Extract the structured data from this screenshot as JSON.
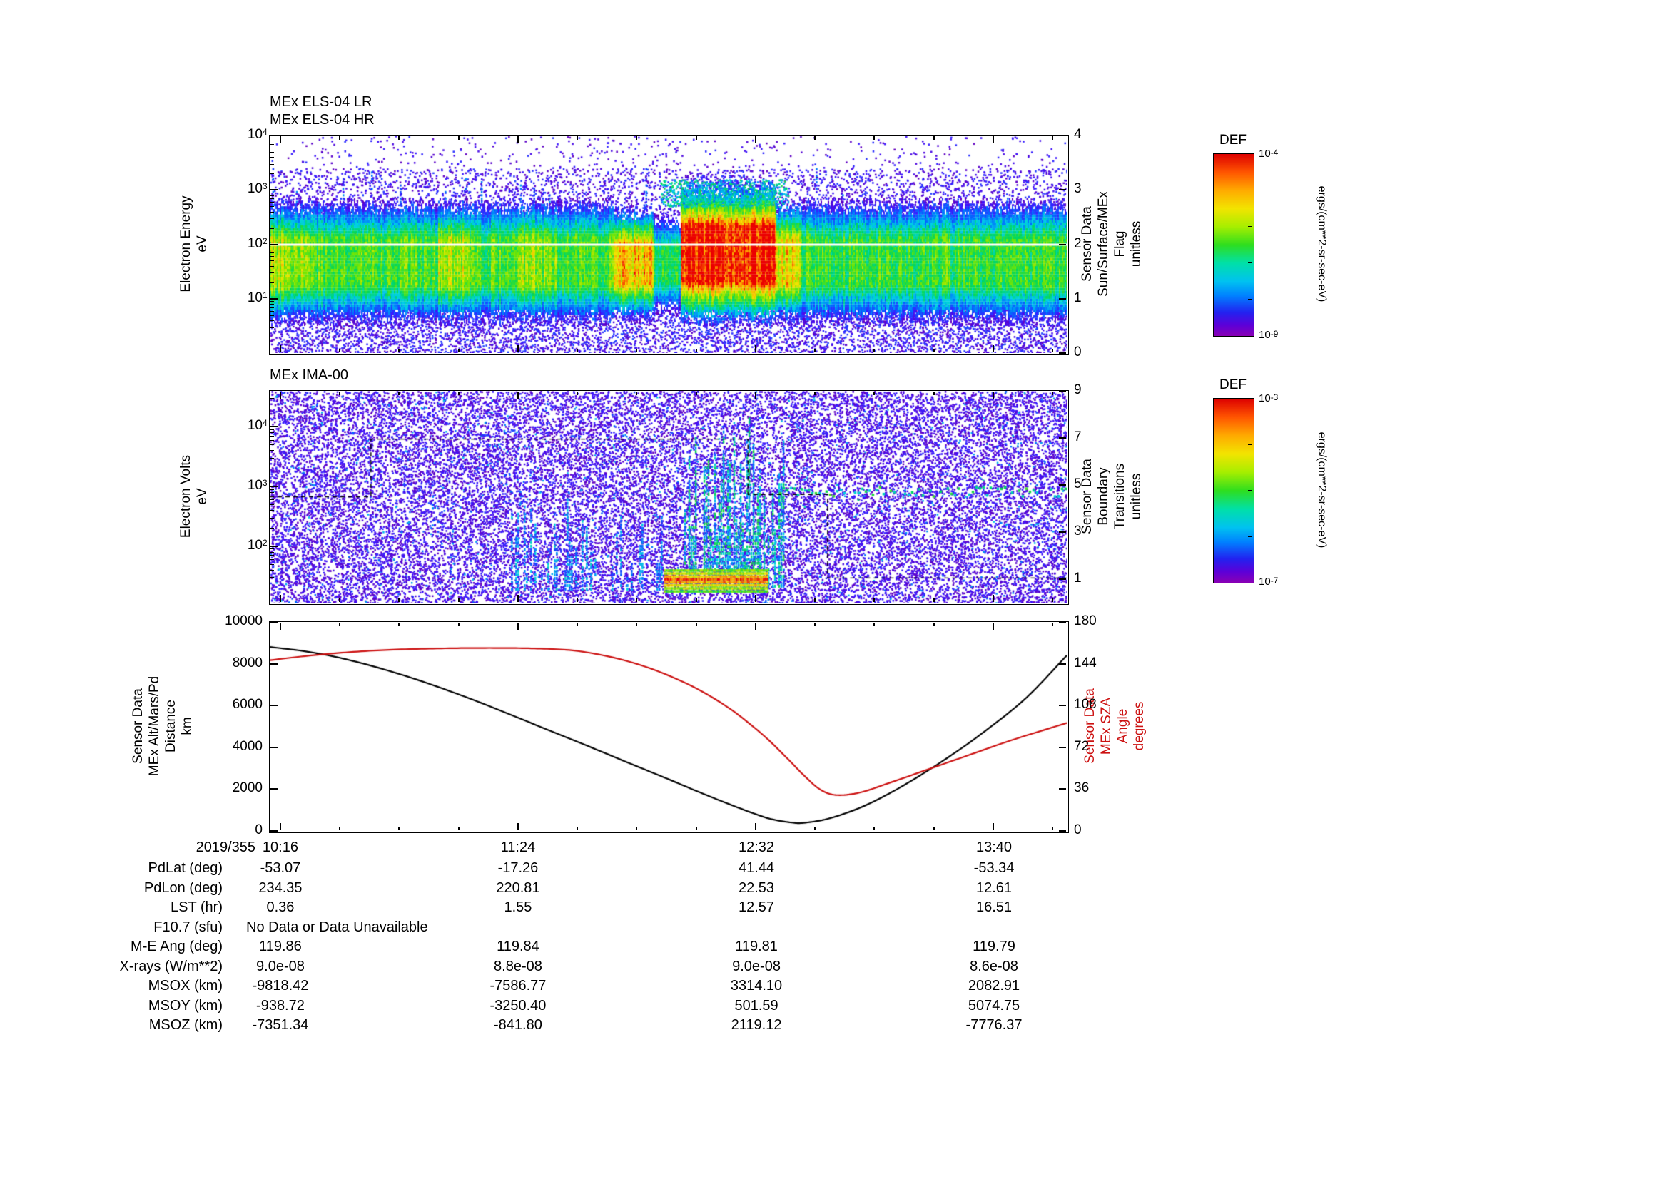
{
  "els": {
    "title1": "MEx ELS-04 LR",
    "title2": "MEx ELS-04 HR",
    "ylabel": "Electron Energy\neV",
    "right_label": "Sensor Data\nSun/Surface/MEx\nFlag\nunitless",
    "colorbar": {
      "title": "DEF",
      "top": "10^-4",
      "bottom": "10^-9",
      "units": "ergs/(cm**2-sr-sec-eV)"
    }
  },
  "ima": {
    "title": "MEx IMA-00",
    "ylabel": "Electron Volts\neV",
    "right_label": "Sensor Data\nBoundary\nTransitions\nunitless",
    "colorbar": {
      "title": "DEF",
      "top": "10^-3",
      "bottom": "10^-7",
      "units": "ergs/(cm**2-sr-sec-eV)"
    }
  },
  "alt": {
    "left_label": "Sensor Data\nMEx Alt/Mars/Pd\nDistance\nkm",
    "right_label": "Sensor Data\nMEx SZA\nAngle\ndegrees"
  },
  "xaxis": {
    "date": "2019/355",
    "ticks": [
      "10:16",
      "11:24",
      "12:32",
      "13:40"
    ],
    "tick_t": [
      0.0134,
      0.3115,
      0.6106,
      0.9087
    ]
  },
  "table": {
    "rows": [
      {
        "label": "PdLat (deg)",
        "values": [
          "-53.07",
          "-17.26",
          "41.44",
          "-53.34"
        ]
      },
      {
        "label": "PdLon (deg)",
        "values": [
          "234.35",
          "220.81",
          "22.53",
          "12.61"
        ]
      },
      {
        "label": "LST (hr)",
        "values": [
          "0.36",
          "1.55",
          "12.57",
          "16.51"
        ]
      },
      {
        "label": "F10.7 (sfu)",
        "values": [
          "No Data or Data Unavailable"
        ],
        "span": true
      },
      {
        "label": "M-E Ang (deg)",
        "values": [
          "119.86",
          "119.84",
          "119.81",
          "119.79"
        ]
      },
      {
        "label": "X-rays (W/m**2)",
        "values": [
          "9.0e-08",
          "8.8e-08",
          "9.0e-08",
          "8.6e-08"
        ]
      },
      {
        "label": "MSOX (km)",
        "values": [
          "-9818.42",
          "-7586.77",
          "3314.10",
          "2082.91"
        ]
      },
      {
        "label": "MSOY (km)",
        "values": [
          "-938.72",
          "-3250.40",
          "501.59",
          "5074.75"
        ]
      },
      {
        "label": "MSOZ (km)",
        "values": [
          "-7351.34",
          "-841.80",
          "2119.12",
          "-7776.37"
        ]
      }
    ]
  },
  "chart_data": [
    {
      "type": "heatmap",
      "title": "MEx ELS-04 LR / MEx ELS-04 HR electron energy spectrogram",
      "ylabel": "Electron Energy eV",
      "yscale": "log",
      "ylim": [
        1,
        10000
      ],
      "yticks": [
        "10^1",
        "10^2",
        "10^3",
        "10^4"
      ],
      "x_ticks": [
        "10:16",
        "11:24",
        "12:32",
        "13:40"
      ],
      "right_axis": {
        "label": "Sensor Data Sun/Surface/MEx Flag unitless",
        "lim": [
          0,
          4
        ],
        "ticks": [
          0,
          1,
          2,
          3,
          4
        ]
      },
      "colorbar": {
        "label": "DEF",
        "units": "ergs/(cm**2-sr-sec-eV)",
        "min": "1e-9",
        "max": "1e-4"
      },
      "flag_line": {
        "value": 2,
        "color": "#ffffff",
        "note": "white horizontal line at 100 eV across plot"
      },
      "band": {
        "logE": [
          0.85,
          2.55
        ],
        "base_v": 0.6
      },
      "features": [
        {
          "t": [
            0.0,
            0.05
          ],
          "v": 0.72
        },
        {
          "t": [
            0.05,
            0.21
          ],
          "v": 0.62
        },
        {
          "t": [
            0.21,
            0.25
          ],
          "v": 0.72
        },
        {
          "t": [
            0.25,
            0.31
          ],
          "v": 0.62
        },
        {
          "t": [
            0.31,
            0.36
          ],
          "v": 0.68
        },
        {
          "t": [
            0.36,
            0.43
          ],
          "v": 0.62
        },
        {
          "t": [
            0.43,
            0.48
          ],
          "v": 0.84,
          "logE": [
            0.9,
            2.45
          ],
          "note": "yellow-orange enhancement"
        },
        {
          "t": [
            0.48,
            0.515
          ],
          "v": 0.55,
          "logE": [
            1.0,
            2.3
          ],
          "note": "band thins"
        },
        {
          "t": [
            0.515,
            0.635
          ],
          "v": 1.0,
          "logE": [
            0.85,
            2.85
          ],
          "note": "intense red blob near periapsis"
        },
        {
          "t": [
            0.635,
            0.665
          ],
          "v": 0.8
        },
        {
          "t": [
            0.665,
            1.0
          ],
          "v": 0.6
        }
      ]
    },
    {
      "type": "heatmap",
      "title": "MEx IMA-00 ion spectrogram",
      "ylabel": "Electron Volts eV",
      "yscale": "log",
      "ylim": [
        12,
        40000
      ],
      "yticks": [
        "10^2",
        "10^3",
        "10^4"
      ],
      "x_ticks": [
        "10:16",
        "11:24",
        "12:32",
        "13:40"
      ],
      "right_axis": {
        "label": "Sensor Data Boundary Transitions unitless",
        "lim": [
          0,
          9
        ],
        "ticks": [
          1,
          3,
          5,
          7,
          9
        ]
      },
      "colorbar": {
        "label": "DEF",
        "units": "ergs/(cm**2-sr-sec-eV)",
        "min": "1e-7",
        "max": "1e-3"
      },
      "boundary_line": {
        "color": "#000000",
        "points": [
          [
            0,
            4.5
          ],
          [
            0.127,
            4.5
          ],
          [
            0.127,
            6.95
          ],
          [
            0.6,
            6.95
          ],
          [
            0.6,
            4.6
          ],
          [
            0.7,
            4.6
          ],
          [
            0.7,
            1.05
          ],
          [
            1.0,
            1.05
          ]
        ]
      },
      "features": [
        {
          "t": [
            0.3,
            0.5
          ],
          "logE": [
            1.3,
            2.9
          ],
          "v": 0.4,
          "note": "sparse cyan vertical streaks"
        },
        {
          "t": [
            0.52,
            0.645
          ],
          "logE": [
            1.35,
            4.2
          ],
          "v": 0.55,
          "note": "dense vertical streaks near periapsis"
        },
        {
          "t": [
            0.495,
            0.625
          ],
          "logE": [
            1.26,
            1.64
          ],
          "v": 0.95,
          "note": "intense low-energy red band"
        },
        {
          "t": [
            0.63,
            1.0
          ],
          "logE": [
            2.85,
            3.05
          ],
          "v": 0.55,
          "note": "dotted green solar-wind ion line"
        }
      ]
    },
    {
      "type": "line",
      "title": "MEx altitude and solar zenith angle",
      "x_ticks": [
        "10:16",
        "11:24",
        "12:32",
        "13:40"
      ],
      "left_axis": {
        "label": "Sensor Data MEx Alt/Mars/Pd Distance km",
        "lim": [
          0,
          10000
        ],
        "ticks": [
          0,
          2000,
          4000,
          6000,
          8000,
          10000
        ]
      },
      "right_axis": {
        "label": "Sensor Data MEx SZA Angle degrees",
        "lim": [
          0,
          180
        ],
        "ticks": [
          0,
          36,
          72,
          108,
          144,
          180
        ]
      },
      "series": [
        {
          "name": "MEx Alt/Mars/Pd Distance",
          "units": "km",
          "color": "#000000",
          "axis": "left",
          "t": [
            0,
            0.04,
            0.08,
            0.12,
            0.16,
            0.2,
            0.25,
            0.3,
            0.35,
            0.4,
            0.45,
            0.5,
            0.54,
            0.58,
            0.61,
            0.63,
            0.655,
            0.67,
            0.7,
            0.74,
            0.78,
            0.82,
            0.86,
            0.9,
            0.95,
            1.0
          ],
          "values": [
            8800,
            8620,
            8350,
            7980,
            7540,
            7040,
            6350,
            5600,
            4820,
            4050,
            3260,
            2480,
            1840,
            1230,
            800,
            560,
            400,
            390,
            580,
            1100,
            1850,
            2750,
            3750,
            4850,
            6400,
            8400
          ]
        },
        {
          "name": "MEx SZA Angle",
          "units": "degrees",
          "color": "#cc1111",
          "axis": "right",
          "t": [
            0,
            0.05,
            0.1,
            0.15,
            0.2,
            0.25,
            0.3,
            0.34,
            0.38,
            0.42,
            0.46,
            0.5,
            0.54,
            0.58,
            0.62,
            0.65,
            0.67,
            0.69,
            0.71,
            0.74,
            0.78,
            0.83,
            0.88,
            0.93,
            1.0
          ],
          "values": [
            147,
            151,
            154,
            156,
            157,
            157.5,
            157.5,
            157,
            155.5,
            151,
            144,
            134,
            121,
            104,
            82,
            62,
            48,
            36,
            31,
            33,
            42,
            54,
            66,
            78,
            93
          ]
        }
      ]
    }
  ]
}
